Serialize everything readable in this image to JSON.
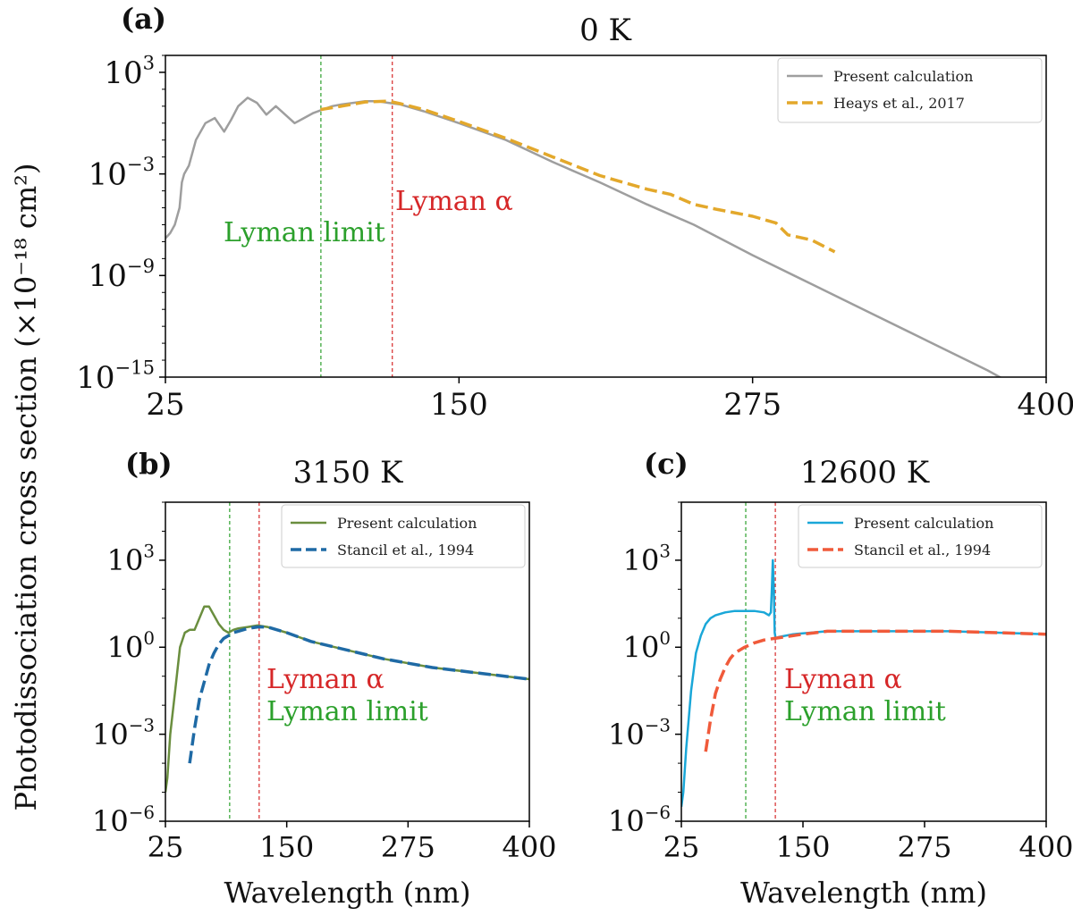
{
  "figure": {
    "ylabel": "Photodissociation cross section (×10⁻¹⁸ cm²)",
    "colors": {
      "lyman_limit": "#2ca02c",
      "lyman_alpha": "#d62728",
      "axis": "#000000"
    }
  },
  "chart_data": [
    {
      "type": "line",
      "panel": "(a)",
      "title": "0 K",
      "xlabel": "",
      "ylabel": "",
      "xlim": [
        25,
        400
      ],
      "y_log_exponent_lim": [
        -15,
        4
      ],
      "y_scale": "log",
      "xticks": [
        "25",
        "150",
        "275",
        "400"
      ],
      "yticks": [
        {
          "base": "10",
          "exp": "3"
        },
        {
          "base": "10",
          "exp": "−3"
        },
        {
          "base": "10",
          "exp": "−9"
        },
        {
          "base": "10",
          "exp": "−15"
        }
      ],
      "legend_position": "top-right",
      "vlines": [
        {
          "x": 91.2,
          "label": "Lyman limit",
          "color": "#2ca02c"
        },
        {
          "x": 121.6,
          "label": "Lyman α",
          "color": "#d62728"
        }
      ],
      "series": [
        {
          "name": "Present calculation",
          "style": "solid",
          "color": "#9e9e9e",
          "x": [
            25,
            27,
            29,
            31,
            32,
            33,
            35,
            38,
            42,
            46,
            50,
            53,
            56,
            60,
            64,
            68,
            72,
            76,
            80,
            84,
            88,
            92,
            96,
            100,
            105,
            110,
            115,
            120,
            125,
            135,
            150,
            170,
            190,
            210,
            230,
            250,
            275,
            300,
            325,
            350,
            375,
            400
          ],
          "log10_y": [
            -6.8,
            -6.5,
            -6.0,
            -5.0,
            -3.5,
            -3.0,
            -2.5,
            -1.0,
            0.0,
            0.3,
            -0.5,
            0.2,
            1.0,
            1.5,
            1.2,
            0.5,
            1.0,
            0.5,
            0.0,
            0.3,
            0.6,
            0.8,
            1.0,
            1.1,
            1.2,
            1.3,
            1.3,
            1.2,
            1.1,
            0.7,
            0.0,
            -1.0,
            -2.3,
            -3.5,
            -4.8,
            -6.0,
            -7.8,
            -9.5,
            -11.2,
            -12.9,
            -14.6,
            -16.5
          ]
        },
        {
          "name": "Heays et al., 2017",
          "style": "dashed",
          "color": "#e3a82b",
          "x": [
            91,
            100,
            110,
            120,
            125,
            135,
            150,
            170,
            190,
            210,
            230,
            240,
            250,
            260,
            275,
            285,
            290,
            300,
            310
          ],
          "log10_y": [
            0.8,
            1.0,
            1.25,
            1.3,
            1.15,
            0.8,
            0.1,
            -0.9,
            -2.0,
            -3.1,
            -3.9,
            -4.2,
            -4.8,
            -5.1,
            -5.5,
            -5.9,
            -6.6,
            -6.9,
            -7.6
          ]
        }
      ]
    },
    {
      "type": "line",
      "panel": "(b)",
      "title": "3150 K",
      "xlabel": "Wavelength (nm)",
      "ylabel": "",
      "xlim": [
        25,
        400
      ],
      "y_log_exponent_lim": [
        -6,
        5
      ],
      "y_scale": "log",
      "xticks": [
        "25",
        "150",
        "275",
        "400"
      ],
      "yticks": [
        {
          "base": "10",
          "exp": "3"
        },
        {
          "base": "10",
          "exp": "0"
        },
        {
          "base": "10",
          "exp": "−3"
        },
        {
          "base": "10",
          "exp": "−6"
        }
      ],
      "legend_position": "top-right",
      "vlines": [
        {
          "x": 91.2,
          "label": "Lyman limit",
          "color": "#2ca02c"
        },
        {
          "x": 121.6,
          "label": "Lyman α",
          "color": "#d62728"
        }
      ],
      "series": [
        {
          "name": "Present calculation",
          "style": "solid",
          "color": "#6a8e3e",
          "x": [
            25,
            27,
            30,
            35,
            40,
            45,
            50,
            55,
            60,
            65,
            70,
            75,
            80,
            85,
            90,
            95,
            100,
            110,
            120,
            130,
            150,
            175,
            200,
            250,
            300,
            350,
            400
          ],
          "log10_y": [
            -5.0,
            -4.5,
            -3.0,
            -1.5,
            0.0,
            0.5,
            0.6,
            0.6,
            1.0,
            1.4,
            1.4,
            1.1,
            0.8,
            0.6,
            0.5,
            0.6,
            0.65,
            0.7,
            0.75,
            0.7,
            0.5,
            0.2,
            0.0,
            -0.4,
            -0.7,
            -0.9,
            -1.1
          ]
        },
        {
          "name": "Stancil et al., 1994",
          "style": "dashed",
          "color": "#1f6aa5",
          "x": [
            50,
            55,
            60,
            65,
            70,
            75,
            80,
            85,
            90,
            95,
            100,
            110,
            120,
            130,
            150,
            175,
            200,
            250,
            300,
            350,
            400
          ],
          "log10_y": [
            -4.0,
            -2.8,
            -1.8,
            -1.2,
            -0.6,
            -0.2,
            0.1,
            0.3,
            0.4,
            0.5,
            0.55,
            0.65,
            0.7,
            0.7,
            0.5,
            0.2,
            0.0,
            -0.4,
            -0.7,
            -0.9,
            -1.1
          ]
        }
      ]
    },
    {
      "type": "line",
      "panel": "(c)",
      "title": "12600 K",
      "xlabel": "Wavelength (nm)",
      "ylabel": "",
      "xlim": [
        25,
        400
      ],
      "y_log_exponent_lim": [
        -6,
        5
      ],
      "y_scale": "log",
      "xticks": [
        "25",
        "150",
        "275",
        "400"
      ],
      "yticks": [
        {
          "base": "10",
          "exp": "3"
        },
        {
          "base": "10",
          "exp": "0"
        },
        {
          "base": "10",
          "exp": "−3"
        },
        {
          "base": "10",
          "exp": "−6"
        }
      ],
      "legend_position": "top-right",
      "vlines": [
        {
          "x": 91.2,
          "label": "Lyman limit",
          "color": "#2ca02c"
        },
        {
          "x": 121.6,
          "label": "Lyman α",
          "color": "#d62728"
        }
      ],
      "series": [
        {
          "name": "Present calculation",
          "style": "solid",
          "color": "#1aa7d8",
          "x": [
            25,
            27,
            30,
            35,
            40,
            45,
            50,
            55,
            60,
            70,
            80,
            90,
            100,
            110,
            115,
            117,
            118,
            119,
            120,
            121,
            122,
            125,
            140,
            175,
            200,
            250,
            300,
            350,
            400
          ],
          "log10_y": [
            -5.5,
            -5.0,
            -3.5,
            -1.5,
            -0.2,
            0.4,
            0.8,
            1.0,
            1.1,
            1.2,
            1.25,
            1.25,
            1.25,
            1.2,
            1.1,
            1.2,
            2.0,
            3.0,
            2.0,
            0.5,
            0.3,
            0.35,
            0.45,
            0.55,
            0.55,
            0.55,
            0.55,
            0.5,
            0.45
          ]
        },
        {
          "name": "Stancil et al., 1994",
          "style": "dashed",
          "color": "#f05a3a",
          "x": [
            50,
            55,
            60,
            65,
            70,
            75,
            80,
            90,
            100,
            110,
            120,
            130,
            150,
            175,
            200,
            250,
            300,
            350,
            400
          ],
          "log10_y": [
            -3.6,
            -2.5,
            -1.6,
            -1.1,
            -0.7,
            -0.4,
            -0.2,
            0.0,
            0.15,
            0.25,
            0.3,
            0.35,
            0.45,
            0.55,
            0.55,
            0.55,
            0.55,
            0.5,
            0.45
          ]
        }
      ]
    }
  ],
  "annotations": [
    {
      "panel": 0,
      "text": "Lyman limit",
      "color": "#2ca02c"
    },
    {
      "panel": 0,
      "text": "Lyman α",
      "color": "#d62728"
    },
    {
      "panel": 1,
      "text": "Lyman α",
      "color": "#d62728"
    },
    {
      "panel": 1,
      "text": "Lyman limit",
      "color": "#2ca02c"
    },
    {
      "panel": 2,
      "text": "Lyman α",
      "color": "#d62728"
    },
    {
      "panel": 2,
      "text": "Lyman limit",
      "color": "#2ca02c"
    }
  ]
}
